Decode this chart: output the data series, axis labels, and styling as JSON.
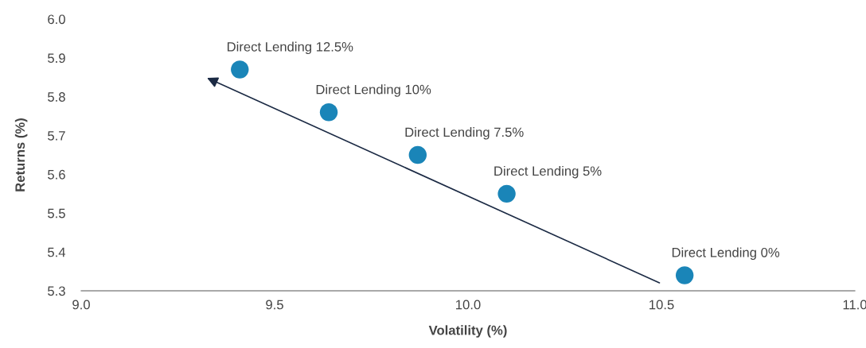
{
  "chart_data": {
    "type": "scatter",
    "x": [
      9.41,
      9.64,
      9.87,
      10.1,
      10.56
    ],
    "values": [
      5.87,
      5.76,
      5.65,
      5.55,
      5.34
    ],
    "color": "#1a85b8",
    "marker": "circle",
    "xlabel": "Volatility (%)",
    "ylabel": "Returns (%)",
    "xlim": [
      9.0,
      11.0
    ],
    "ylim": [
      5.3,
      6.0
    ],
    "xticks": [
      {
        "value": 9.0,
        "label": "9.0"
      },
      {
        "value": 9.5,
        "label": "9.5"
      },
      {
        "value": 10.0,
        "label": "10.0"
      },
      {
        "value": 10.5,
        "label": "10.5"
      },
      {
        "value": 11.0,
        "label": "11.0"
      }
    ],
    "yticks": [
      {
        "value": 5.3,
        "label": "5.3"
      },
      {
        "value": 5.4,
        "label": "5.4"
      },
      {
        "value": 5.5,
        "label": "5.5"
      },
      {
        "value": 5.6,
        "label": "5.6"
      },
      {
        "value": 5.7,
        "label": "5.7"
      },
      {
        "value": 5.8,
        "label": "5.8"
      },
      {
        "value": 5.9,
        "label": "5.9"
      },
      {
        "value": 6.0,
        "label": "6.0"
      }
    ],
    "grid": false,
    "annotations": [
      {
        "text": "Direct Lending 12.5%",
        "x": 9.41,
        "y": 5.87
      },
      {
        "text": "Direct Lending 10%",
        "x": 9.64,
        "y": 5.76
      },
      {
        "text": "Direct Lending 7.5%",
        "x": 9.87,
        "y": 5.65
      },
      {
        "text": "Direct Lending 5%",
        "x": 10.1,
        "y": 5.55
      },
      {
        "text": "Direct Lending 0%",
        "x": 10.56,
        "y": 5.34
      }
    ]
  }
}
